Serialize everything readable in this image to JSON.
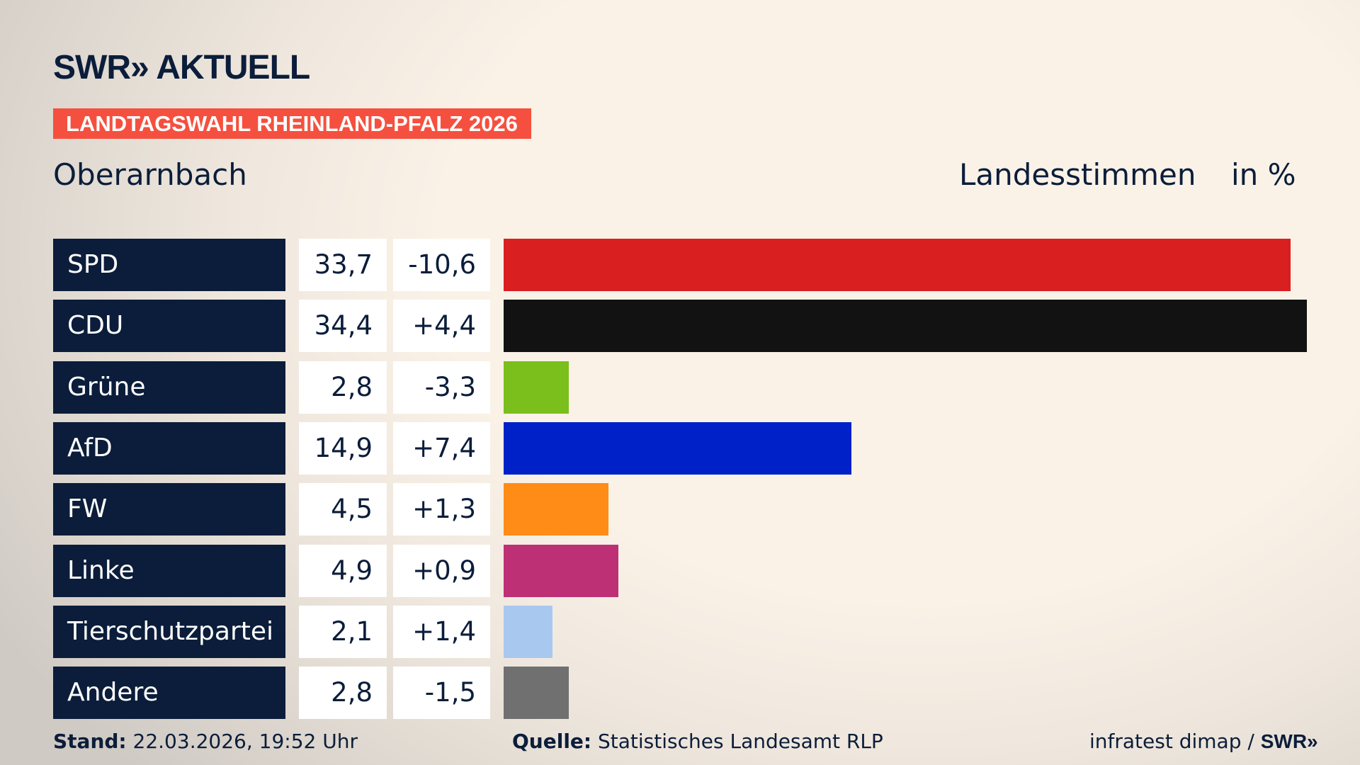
{
  "brand": {
    "logo": "SWR» AKTUELL",
    "tag": "LANDTAGSWAHL RHEINLAND-PFALZ 2026"
  },
  "header": {
    "place": "Oberarnbach",
    "type": "Landesstimmen",
    "unit": "in %"
  },
  "chart_data": {
    "type": "bar",
    "orientation": "horizontal",
    "xlim": [
      0,
      34.4
    ],
    "categories": [
      "SPD",
      "CDU",
      "Grüne",
      "AfD",
      "FW",
      "Linke",
      "Tierschutzpartei",
      "Andere"
    ],
    "values": [
      33.7,
      34.4,
      2.8,
      14.9,
      4.5,
      4.9,
      2.1,
      2.8
    ],
    "value_labels": [
      "33,7",
      "34,4",
      "2,8",
      "14,9",
      "4,5",
      "4,9",
      "2,1",
      "2,8"
    ],
    "diff_labels": [
      "-10,6",
      "+4,4",
      "-3,3",
      "+7,4",
      "+1,3",
      "+0,9",
      "+1,4",
      "-1,5"
    ],
    "colors": [
      "#d91f20",
      "#121212",
      "#7abf1b",
      "#0021c7",
      "#ff8c16",
      "#bd3075",
      "#a8c8f0",
      "#707070"
    ]
  },
  "footer": {
    "stand_label": "Stand:",
    "stand": "22.03.2026, 19:52 Uhr",
    "source_label": "Quelle:",
    "source": "Statistisches Landesamt RLP",
    "credit": "infratest dimap /",
    "credit_logo": "SWR»"
  }
}
